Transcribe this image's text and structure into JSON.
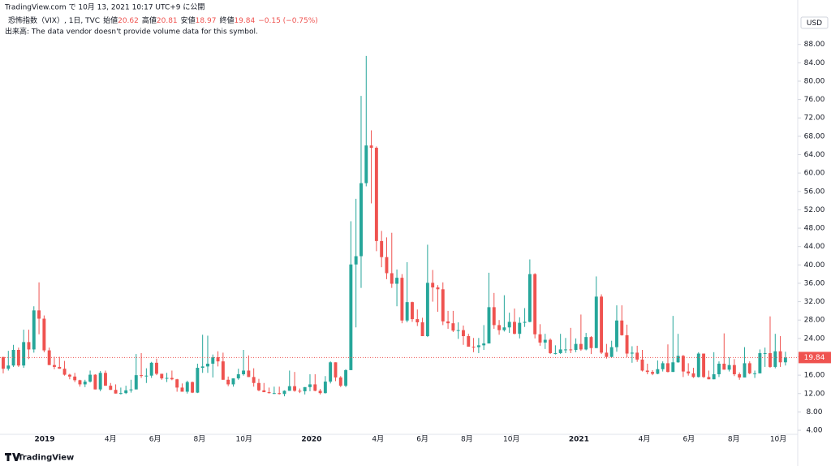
{
  "header": {
    "published": "TradingView.com で 10月 13, 2021 10:17 UTC+9 に公開",
    "symbol": "恐怖指数（VIX）, 1日, TVC",
    "open_label": "始値",
    "high_label": "高値",
    "low_label": "安値",
    "close_label": "終値",
    "change": "−0.15 (−0.75%)",
    "volume_note": "出来高: The data vendor doesn't provide volume data for this symbol.",
    "brand": "TradingView"
  },
  "chart_data": {
    "type": "candlestick",
    "currency": "USD",
    "open": 20.62,
    "high": 20.81,
    "low": 18.97,
    "last_close": 19.84,
    "up_color": "#26a69a",
    "down_color": "#ef5350",
    "xlim": [
      -0.63,
      155.4
    ],
    "ylim": [
      3.12,
      92.72
    ],
    "xticks": [
      {
        "value": 8.1,
        "label": "2019"
      },
      {
        "value": 21.0,
        "label": "4月"
      },
      {
        "value": 29.7,
        "label": "6月"
      },
      {
        "value": 38.4,
        "label": "8月"
      },
      {
        "value": 47.1,
        "label": "10月"
      },
      {
        "value": 60.3,
        "label": "2020"
      },
      {
        "value": 73.3,
        "label": "4月"
      },
      {
        "value": 82.0,
        "label": "6月"
      },
      {
        "value": 90.7,
        "label": "8月"
      },
      {
        "value": 99.4,
        "label": "10月"
      },
      {
        "value": 112.6,
        "label": "2021"
      },
      {
        "value": 125.4,
        "label": "4月"
      },
      {
        "value": 134.1,
        "label": "6月"
      },
      {
        "value": 142.9,
        "label": "8月"
      },
      {
        "value": 151.6,
        "label": "10月"
      }
    ],
    "yticks": [
      {
        "value": 4,
        "label": "4.00"
      },
      {
        "value": 8,
        "label": "8.00"
      },
      {
        "value": 12,
        "label": "12.00"
      },
      {
        "value": 16,
        "label": "16.00"
      },
      {
        "value": 20,
        "label": "20.00"
      },
      {
        "value": 24,
        "label": "24.00"
      },
      {
        "value": 28,
        "label": "28.00"
      },
      {
        "value": 32,
        "label": "32.00"
      },
      {
        "value": 36,
        "label": "36.00"
      },
      {
        "value": 40,
        "label": "40.00"
      },
      {
        "value": 44,
        "label": "44.00"
      },
      {
        "value": 48,
        "label": "48.00"
      },
      {
        "value": 52,
        "label": "52.00"
      },
      {
        "value": 56,
        "label": "56.00"
      },
      {
        "value": 60,
        "label": "60.00"
      },
      {
        "value": 64,
        "label": "64.00"
      },
      {
        "value": 68,
        "label": "68.00"
      },
      {
        "value": 72,
        "label": "72.00"
      },
      {
        "value": 76,
        "label": "76.00"
      },
      {
        "value": 80,
        "label": "80.00"
      },
      {
        "value": 84,
        "label": "84.00"
      },
      {
        "value": 88,
        "label": "88.00"
      }
    ],
    "candles": [
      [
        19.96,
        20.0,
        16.4,
        17.4
      ],
      [
        17.4,
        21.3,
        17.0,
        18.1
      ],
      [
        18.1,
        22.6,
        17.8,
        21.5
      ],
      [
        21.5,
        22.0,
        17.8,
        18.1
      ],
      [
        18.1,
        25.9,
        17.6,
        23.2
      ],
      [
        23.2,
        25.9,
        19.5,
        21.6
      ],
      [
        21.6,
        31.0,
        20.9,
        30.1
      ],
      [
        30.1,
        36.2,
        24.9,
        28.3
      ],
      [
        28.3,
        29.0,
        21.0,
        21.4
      ],
      [
        21.4,
        22.0,
        18.2,
        18.2
      ],
      [
        18.2,
        20.0,
        17.3,
        17.8
      ],
      [
        17.8,
        20.0,
        17.4,
        17.4
      ],
      [
        17.4,
        19.1,
        15.9,
        16.1
      ],
      [
        16.1,
        16.3,
        15.1,
        15.7
      ],
      [
        15.7,
        16.5,
        14.5,
        14.9
      ],
      [
        14.9,
        15.0,
        13.5,
        14.0
      ],
      [
        14.0,
        15.0,
        13.4,
        14.6
      ],
      [
        14.6,
        17.0,
        14.4,
        16.1
      ],
      [
        16.1,
        16.2,
        12.9,
        12.9
      ],
      [
        12.9,
        16.9,
        12.5,
        16.5
      ],
      [
        16.5,
        17.0,
        13.7,
        13.7
      ],
      [
        13.7,
        14.3,
        12.8,
        12.8
      ],
      [
        12.8,
        14.0,
        12.0,
        12.0
      ],
      [
        12.0,
        13.3,
        11.8,
        12.1
      ],
      [
        12.1,
        13.7,
        11.9,
        12.7
      ],
      [
        12.7,
        15.0,
        12.2,
        12.9
      ],
      [
        12.9,
        20.6,
        12.9,
        16.0
      ],
      [
        16.0,
        20.8,
        15.4,
        15.9
      ],
      [
        15.9,
        17.5,
        14.3,
        15.9
      ],
      [
        15.9,
        18.9,
        15.4,
        18.7
      ],
      [
        18.7,
        19.6,
        16.0,
        16.3
      ],
      [
        16.3,
        16.3,
        15.0,
        15.3
      ],
      [
        15.3,
        16.5,
        14.5,
        15.4
      ],
      [
        15.4,
        17.0,
        14.9,
        15.1
      ],
      [
        15.1,
        15.2,
        12.4,
        13.3
      ],
      [
        13.3,
        14.2,
        12.4,
        12.4
      ],
      [
        12.4,
        14.8,
        12.0,
        14.5
      ],
      [
        14.5,
        14.6,
        12.1,
        12.2
      ],
      [
        12.2,
        18.5,
        12.1,
        17.6
      ],
      [
        17.6,
        24.8,
        16.5,
        17.9
      ],
      [
        17.9,
        24.6,
        16.5,
        18.5
      ],
      [
        18.5,
        20.5,
        15.5,
        19.9
      ],
      [
        19.9,
        21.2,
        17.9,
        19.0
      ],
      [
        19.0,
        20.9,
        15.0,
        15.0
      ],
      [
        15.0,
        15.7,
        13.6,
        14.0
      ],
      [
        14.0,
        15.3,
        13.5,
        15.3
      ],
      [
        15.3,
        17.4,
        15.0,
        16.2
      ],
      [
        16.2,
        21.5,
        15.9,
        17.0
      ],
      [
        17.0,
        20.3,
        15.6,
        15.6
      ],
      [
        15.6,
        17.5,
        13.5,
        14.3
      ],
      [
        14.3,
        15.2,
        12.5,
        12.7
      ],
      [
        12.7,
        14.3,
        12.3,
        12.3
      ],
      [
        12.3,
        13.3,
        12.0,
        12.1
      ],
      [
        12.1,
        13.5,
        11.9,
        12.1
      ],
      [
        12.1,
        13.5,
        11.8,
        11.9
      ],
      [
        11.9,
        12.7,
        11.4,
        12.6
      ],
      [
        12.6,
        17.0,
        12.6,
        13.6
      ],
      [
        13.6,
        16.7,
        12.4,
        12.6
      ],
      [
        12.6,
        13.1,
        12.1,
        12.5
      ],
      [
        12.5,
        13.4,
        11.8,
        13.4
      ],
      [
        13.4,
        16.2,
        12.5,
        14.0
      ],
      [
        14.0,
        16.2,
        12.5,
        12.6
      ],
      [
        12.6,
        13.0,
        11.8,
        12.1
      ],
      [
        12.1,
        15.8,
        12.0,
        14.6
      ],
      [
        14.6,
        19.0,
        14.2,
        18.8
      ],
      [
        18.8,
        18.8,
        14.7,
        15.5
      ],
      [
        15.5,
        15.8,
        13.4,
        13.7
      ],
      [
        13.7,
        17.3,
        13.4,
        17.1
      ],
      [
        17.1,
        49.5,
        17.1,
        40.1
      ],
      [
        40.1,
        54.4,
        26.4,
        41.9
      ],
      [
        41.9,
        76.8,
        35.0,
        57.8
      ],
      [
        57.8,
        85.5,
        57.1,
        66.0
      ],
      [
        66.0,
        69.3,
        53.4,
        65.5
      ],
      [
        65.5,
        65.8,
        43.0,
        45.2
      ],
      [
        45.2,
        47.4,
        39.5,
        41.7
      ],
      [
        41.7,
        46.0,
        36.9,
        38.2
      ],
      [
        38.2,
        47.0,
        35.0,
        35.9
      ],
      [
        35.9,
        39.0,
        31.0,
        37.2
      ],
      [
        37.2,
        38.0,
        27.3,
        27.9
      ],
      [
        27.9,
        40.6,
        27.5,
        31.9
      ],
      [
        31.9,
        32.0,
        27.6,
        28.2
      ],
      [
        28.2,
        30.3,
        26.7,
        27.5
      ],
      [
        27.5,
        28.5,
        24.5,
        24.5
      ],
      [
        24.5,
        44.4,
        24.3,
        36.1
      ],
      [
        36.1,
        38.9,
        32.0,
        35.1
      ],
      [
        35.1,
        35.6,
        29.8,
        34.7
      ],
      [
        34.7,
        36.2,
        26.9,
        27.7
      ],
      [
        27.7,
        30.0,
        26.1,
        27.3
      ],
      [
        27.3,
        30.0,
        25.4,
        25.7
      ],
      [
        25.7,
        27.5,
        23.9,
        25.8
      ],
      [
        25.8,
        26.8,
        22.6,
        24.5
      ],
      [
        24.5,
        25.0,
        22.2,
        22.2
      ],
      [
        22.2,
        24.1,
        21.0,
        22.1
      ],
      [
        22.1,
        24.1,
        20.8,
        22.5
      ],
      [
        22.5,
        26.9,
        21.5,
        22.9
      ],
      [
        22.9,
        38.3,
        22.9,
        30.8
      ],
      [
        30.8,
        33.9,
        26.1,
        26.9
      ],
      [
        26.9,
        28.0,
        24.8,
        25.8
      ],
      [
        25.8,
        33.4,
        25.5,
        26.4
      ],
      [
        26.4,
        29.6,
        25.2,
        27.6
      ],
      [
        27.6,
        30.5,
        24.9,
        25.0
      ],
      [
        25.0,
        28.6,
        24.0,
        27.4
      ],
      [
        27.4,
        30.6,
        26.5,
        27.6
      ],
      [
        27.6,
        41.2,
        27.5,
        38.0
      ],
      [
        38.0,
        38.2,
        24.0,
        24.9
      ],
      [
        24.9,
        27.1,
        22.4,
        23.1
      ],
      [
        23.1,
        25.0,
        21.7,
        23.7
      ],
      [
        23.7,
        24.0,
        20.6,
        20.8
      ],
      [
        20.8,
        22.5,
        20.5,
        20.8
      ],
      [
        20.8,
        25.0,
        20.6,
        21.6
      ],
      [
        21.6,
        24.1,
        20.8,
        21.6
      ],
      [
        21.6,
        26.3,
        20.8,
        21.5
      ],
      [
        21.5,
        24.0,
        21.0,
        22.8
      ],
      [
        22.8,
        29.2,
        21.3,
        21.6
      ],
      [
        21.6,
        25.2,
        21.4,
        24.3
      ],
      [
        24.3,
        24.5,
        20.6,
        21.9
      ],
      [
        21.9,
        37.5,
        21.9,
        33.1
      ],
      [
        33.1,
        33.6,
        20.6,
        20.9
      ],
      [
        20.9,
        22.8,
        19.6,
        19.97
      ],
      [
        19.97,
        23.5,
        19.9,
        22.1
      ],
      [
        22.1,
        31.2,
        21.1,
        27.9
      ],
      [
        27.9,
        31.2,
        24.6,
        24.7
      ],
      [
        24.7,
        27.0,
        19.9,
        20.7
      ],
      [
        20.7,
        22.3,
        18.7,
        20.9
      ],
      [
        20.9,
        22.4,
        18.9,
        19.4
      ],
      [
        19.4,
        21.5,
        16.8,
        17.0
      ],
      [
        17.0,
        18.5,
        16.2,
        16.7
      ],
      [
        16.7,
        17.1,
        16.0,
        16.3
      ],
      [
        16.3,
        19.2,
        16.2,
        17.3
      ],
      [
        17.3,
        19.0,
        16.8,
        18.6
      ],
      [
        18.6,
        22.7,
        16.6,
        16.7
      ],
      [
        16.7,
        28.9,
        16.7,
        18.8
      ],
      [
        18.8,
        25.0,
        18.7,
        20.2
      ],
      [
        20.2,
        20.4,
        15.6,
        16.8
      ],
      [
        16.8,
        18.6,
        15.9,
        16.4
      ],
      [
        16.4,
        17.6,
        15.4,
        15.6
      ],
      [
        15.6,
        21.0,
        15.5,
        20.7
      ],
      [
        20.7,
        20.7,
        15.4,
        15.6
      ],
      [
        15.6,
        17.0,
        15.1,
        15.1
      ],
      [
        15.1,
        21.0,
        15.1,
        16.2
      ],
      [
        16.2,
        19.0,
        15.6,
        18.5
      ],
      [
        18.5,
        25.1,
        17.2,
        17.2
      ],
      [
        17.2,
        19.9,
        16.8,
        18.2
      ],
      [
        18.2,
        19.5,
        15.8,
        16.2
      ],
      [
        16.2,
        16.6,
        15.0,
        15.5
      ],
      [
        15.5,
        22.1,
        15.5,
        18.6
      ],
      [
        18.6,
        19.0,
        16.2,
        16.4
      ],
      [
        16.4,
        17.0,
        15.4,
        16.4
      ],
      [
        16.4,
        21.6,
        16.4,
        20.8
      ],
      [
        20.8,
        22.0,
        17.8,
        20.8
      ],
      [
        20.8,
        28.8,
        17.6,
        17.8
      ],
      [
        17.8,
        25.0,
        17.5,
        21.2
      ],
      [
        21.2,
        24.5,
        17.8,
        18.8
      ],
      [
        18.8,
        21.1,
        18.1,
        19.84
      ]
    ]
  }
}
